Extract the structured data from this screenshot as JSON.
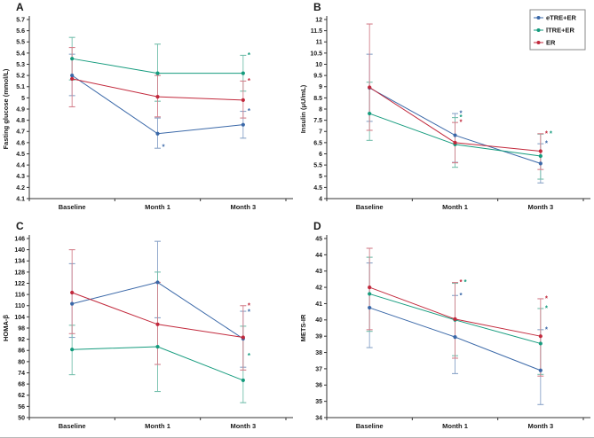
{
  "figure": {
    "x_categories": [
      "Baseline",
      "Month 1",
      "Month 3"
    ],
    "colors": {
      "etre": "#3A68A8",
      "ltre": "#149B7D",
      "er": "#C2293C"
    },
    "legend": {
      "position": "top-right-of-panel-B",
      "entries": [
        {
          "label": "eTRE+ER",
          "color": "#3A68A8"
        },
        {
          "label": "lTRE+ER",
          "color": "#149B7D"
        },
        {
          "label": "ER",
          "color": "#C2293C"
        }
      ]
    }
  },
  "chart_data": [
    {
      "panel_label": "A",
      "type": "line",
      "title": "",
      "xlabel": "",
      "ylabel": "Fasting glucose (mmol/L)",
      "categories": [
        "Baseline",
        "Month 1",
        "Month 3"
      ],
      "ylim": [
        4.1,
        5.7
      ],
      "ytick_step": 0.1,
      "grid": false,
      "legend": false,
      "series": [
        {
          "name": "eTRE+ER",
          "color": "#3A68A8",
          "err_color": "#8AA4C8",
          "values": [
            5.2,
            4.68,
            4.76
          ],
          "err_lo": [
            5.02,
            4.55,
            4.64
          ],
          "err_hi": [
            5.39,
            4.82,
            4.88
          ]
        },
        {
          "name": "lTRE+ER",
          "color": "#149B7D",
          "err_color": "#74BFAC",
          "values": [
            5.35,
            5.22,
            5.22
          ],
          "err_lo": [
            5.16,
            4.97,
            5.06
          ],
          "err_hi": [
            5.54,
            5.48,
            5.38
          ]
        },
        {
          "name": "ER",
          "color": "#C2293C",
          "err_color": "#D4808C",
          "values": [
            5.17,
            5.01,
            4.98
          ],
          "err_lo": [
            4.92,
            4.83,
            4.82
          ],
          "err_hi": [
            5.45,
            5.2,
            5.15
          ]
        }
      ],
      "annotations": [
        {
          "ci": 1,
          "y": 4.56,
          "text": "*",
          "color": "#3A68A8",
          "dx": 5
        },
        {
          "ci": 2,
          "y": 5.38,
          "text": "*",
          "color": "#149B7D",
          "dx": 5
        },
        {
          "ci": 2,
          "y": 5.15,
          "text": "*",
          "color": "#C2293C",
          "dx": 5
        },
        {
          "ci": 2,
          "y": 4.88,
          "text": "*",
          "color": "#3A68A8",
          "dx": 5
        }
      ]
    },
    {
      "panel_label": "B",
      "type": "line",
      "title": "",
      "xlabel": "",
      "ylabel": "Insulin (μU/mL)",
      "categories": [
        "Baseline",
        "Month 1",
        "Month 3"
      ],
      "ylim": [
        4,
        12
      ],
      "ytick_step": 0.5,
      "grid": false,
      "legend": true,
      "series": [
        {
          "name": "eTRE+ER",
          "color": "#3A68A8",
          "err_color": "#8AA4C8",
          "values": [
            8.95,
            6.83,
            5.57
          ],
          "err_lo": [
            7.45,
            5.62,
            4.7
          ],
          "err_hi": [
            10.45,
            7.8,
            6.45
          ]
        },
        {
          "name": "lTRE+ER",
          "color": "#149B7D",
          "err_color": "#74BFAC",
          "values": [
            7.8,
            6.42,
            5.9
          ],
          "err_lo": [
            6.6,
            5.4,
            4.87
          ],
          "err_hi": [
            9.2,
            7.62,
            6.88
          ]
        },
        {
          "name": "ER",
          "color": "#C2293C",
          "err_color": "#D4808C",
          "values": [
            8.97,
            6.5,
            6.12
          ],
          "err_lo": [
            7.05,
            5.6,
            5.3
          ],
          "err_hi": [
            11.8,
            7.4,
            6.9
          ]
        }
      ],
      "annotations": [
        {
          "ci": 1,
          "y": 7.8,
          "text": "*",
          "color": "#3A68A8",
          "dx": 5
        },
        {
          "ci": 1,
          "y": 7.62,
          "text": "*",
          "color": "#149B7D",
          "dx": 5
        },
        {
          "ci": 1,
          "y": 7.4,
          "text": "*",
          "color": "#C2293C",
          "dx": 5
        },
        {
          "ci": 2,
          "y": 6.9,
          "text": "*",
          "color": "#C2293C",
          "dx": 5
        },
        {
          "ci": 2,
          "y": 6.9,
          "text": "*",
          "color": "#149B7D",
          "dx": 10
        },
        {
          "ci": 2,
          "y": 6.45,
          "text": "*",
          "color": "#3A68A8",
          "dx": 5
        }
      ]
    },
    {
      "panel_label": "C",
      "type": "line",
      "title": "",
      "xlabel": "",
      "ylabel": "HOMA-β",
      "categories": [
        "Baseline",
        "Month 1",
        "Month 3"
      ],
      "ylim": [
        50,
        146
      ],
      "ytick_step": 6,
      "grid": false,
      "legend": false,
      "series": [
        {
          "name": "eTRE+ER",
          "color": "#3A68A8",
          "err_color": "#8AA4C8",
          "values": [
            111.0,
            122.5,
            92.3
          ],
          "err_lo": [
            93.0,
            103.5,
            77.0
          ],
          "err_hi": [
            132.5,
            144.5,
            107.0
          ]
        },
        {
          "name": "lTRE+ER",
          "color": "#149B7D",
          "err_color": "#74BFAC",
          "values": [
            86.5,
            88.0,
            70.0
          ],
          "err_lo": [
            73.0,
            64.0,
            58.0
          ],
          "err_hi": [
            99.5,
            128.0,
            99.0
          ]
        },
        {
          "name": "ER",
          "color": "#C2293C",
          "err_color": "#D4808C",
          "values": [
            117.0,
            100.0,
            93.0
          ],
          "err_lo": [
            95.0,
            78.5,
            75.5
          ],
          "err_hi": [
            140.0,
            122.5,
            110.0
          ]
        }
      ],
      "annotations": [
        {
          "ci": 2,
          "y": 110.0,
          "text": "*",
          "color": "#C2293C",
          "dx": 5
        },
        {
          "ci": 2,
          "y": 106.5,
          "text": "*",
          "color": "#3A68A8",
          "dx": 5
        },
        {
          "ci": 2,
          "y": 83.0,
          "text": "*",
          "color": "#149B7D",
          "dx": 5
        }
      ]
    },
    {
      "panel_label": "D",
      "type": "line",
      "title": "",
      "xlabel": "",
      "ylabel": "METS-IR",
      "categories": [
        "Baseline",
        "Month 1",
        "Month 3"
      ],
      "ylim": [
        34,
        45
      ],
      "ytick_step": 1,
      "grid": false,
      "legend": false,
      "series": [
        {
          "name": "eTRE+ER",
          "color": "#3A68A8",
          "err_color": "#8AA4C8",
          "values": [
            40.75,
            38.95,
            36.9
          ],
          "err_lo": [
            38.3,
            36.7,
            34.8
          ],
          "err_hi": [
            43.5,
            41.5,
            39.4
          ]
        },
        {
          "name": "lTRE+ER",
          "color": "#149B7D",
          "err_color": "#74BFAC",
          "values": [
            41.6,
            40.0,
            38.55
          ],
          "err_lo": [
            39.3,
            37.8,
            36.65
          ],
          "err_hi": [
            43.85,
            42.25,
            40.7
          ]
        },
        {
          "name": "ER",
          "color": "#C2293C",
          "err_color": "#D4808C",
          "values": [
            42.0,
            40.05,
            39.0
          ],
          "err_lo": [
            39.4,
            37.65,
            36.55
          ],
          "err_hi": [
            44.4,
            42.3,
            41.3
          ]
        }
      ],
      "annotations": [
        {
          "ci": 1,
          "y": 42.3,
          "text": "*",
          "color": "#C2293C",
          "dx": 5
        },
        {
          "ci": 1,
          "y": 42.3,
          "text": "*",
          "color": "#149B7D",
          "dx": 10
        },
        {
          "ci": 1,
          "y": 41.5,
          "text": "*",
          "color": "#3A68A8",
          "dx": 5
        },
        {
          "ci": 2,
          "y": 41.3,
          "text": "*",
          "color": "#C2293C",
          "dx": 5
        },
        {
          "ci": 2,
          "y": 40.7,
          "text": "*",
          "color": "#149B7D",
          "dx": 5
        },
        {
          "ci": 2,
          "y": 39.4,
          "text": "*",
          "color": "#3A68A8",
          "dx": 5
        }
      ]
    }
  ]
}
